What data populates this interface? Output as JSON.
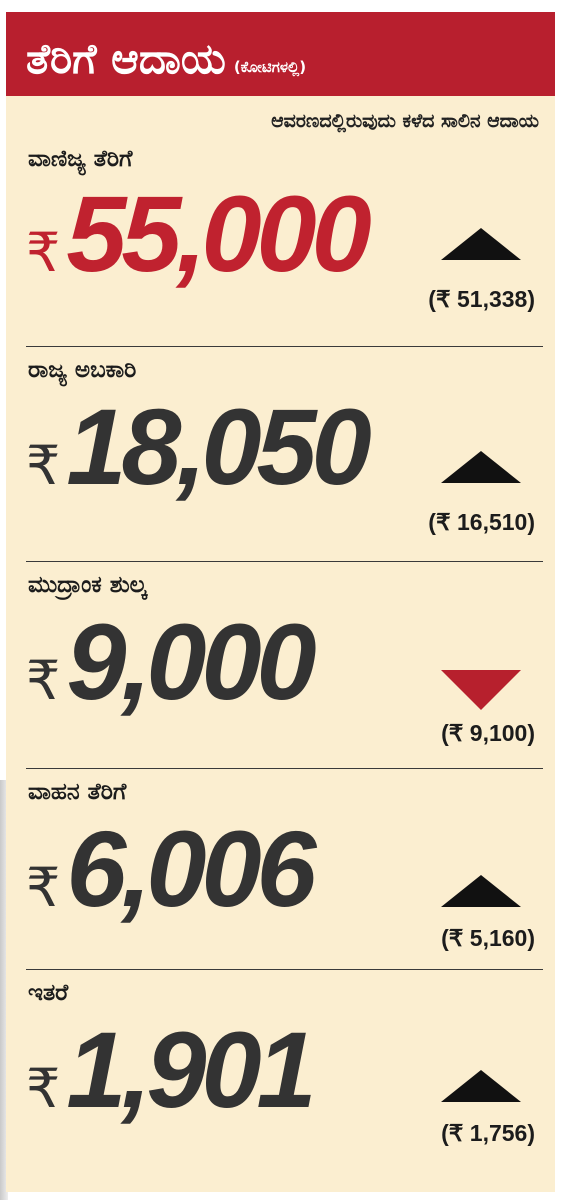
{
  "header": {
    "title": "ತೆರಿಗೆ ಆದಾಯ",
    "unit": "(ಕೋಟಿಗಳಲ್ಲಿ)"
  },
  "note": "ಆವರಣದಲ್ಲಿರುವುದು ಕಳೆದ ಸಾಲಿನ ಆದಾಯ",
  "currency_symbol": "₹",
  "colors": {
    "header_bg": "#b81f2e",
    "panel_bg": "#fbeed0",
    "highlight": "#c0222f",
    "up": "#111111",
    "down": "#b7202d"
  },
  "items": [
    {
      "label": "ವಾಣಿಜ್ಯ ತೆರಿಗೆ",
      "amount": "55,000",
      "previous": "(₹ 51,338)",
      "trend": "up-icon"
    },
    {
      "label": "ರಾಜ್ಯ ಅಬಕಾರಿ",
      "amount": "18,050",
      "previous": "(₹ 16,510)",
      "trend": "up-icon"
    },
    {
      "label": "ಮುದ್ರಾಂಕ ಶುಲ್ಕ",
      "amount": "9,000",
      "previous": "(₹ 9,100)",
      "trend": "down-icon"
    },
    {
      "label": "ವಾಹನ ತೆರಿಗೆ",
      "amount": "6,006",
      "previous": "(₹ 5,160)",
      "trend": "up-icon"
    },
    {
      "label": "ಇತರೆ",
      "amount": "1,901",
      "previous": "(₹ 1,756)",
      "trend": "up-icon"
    }
  ]
}
